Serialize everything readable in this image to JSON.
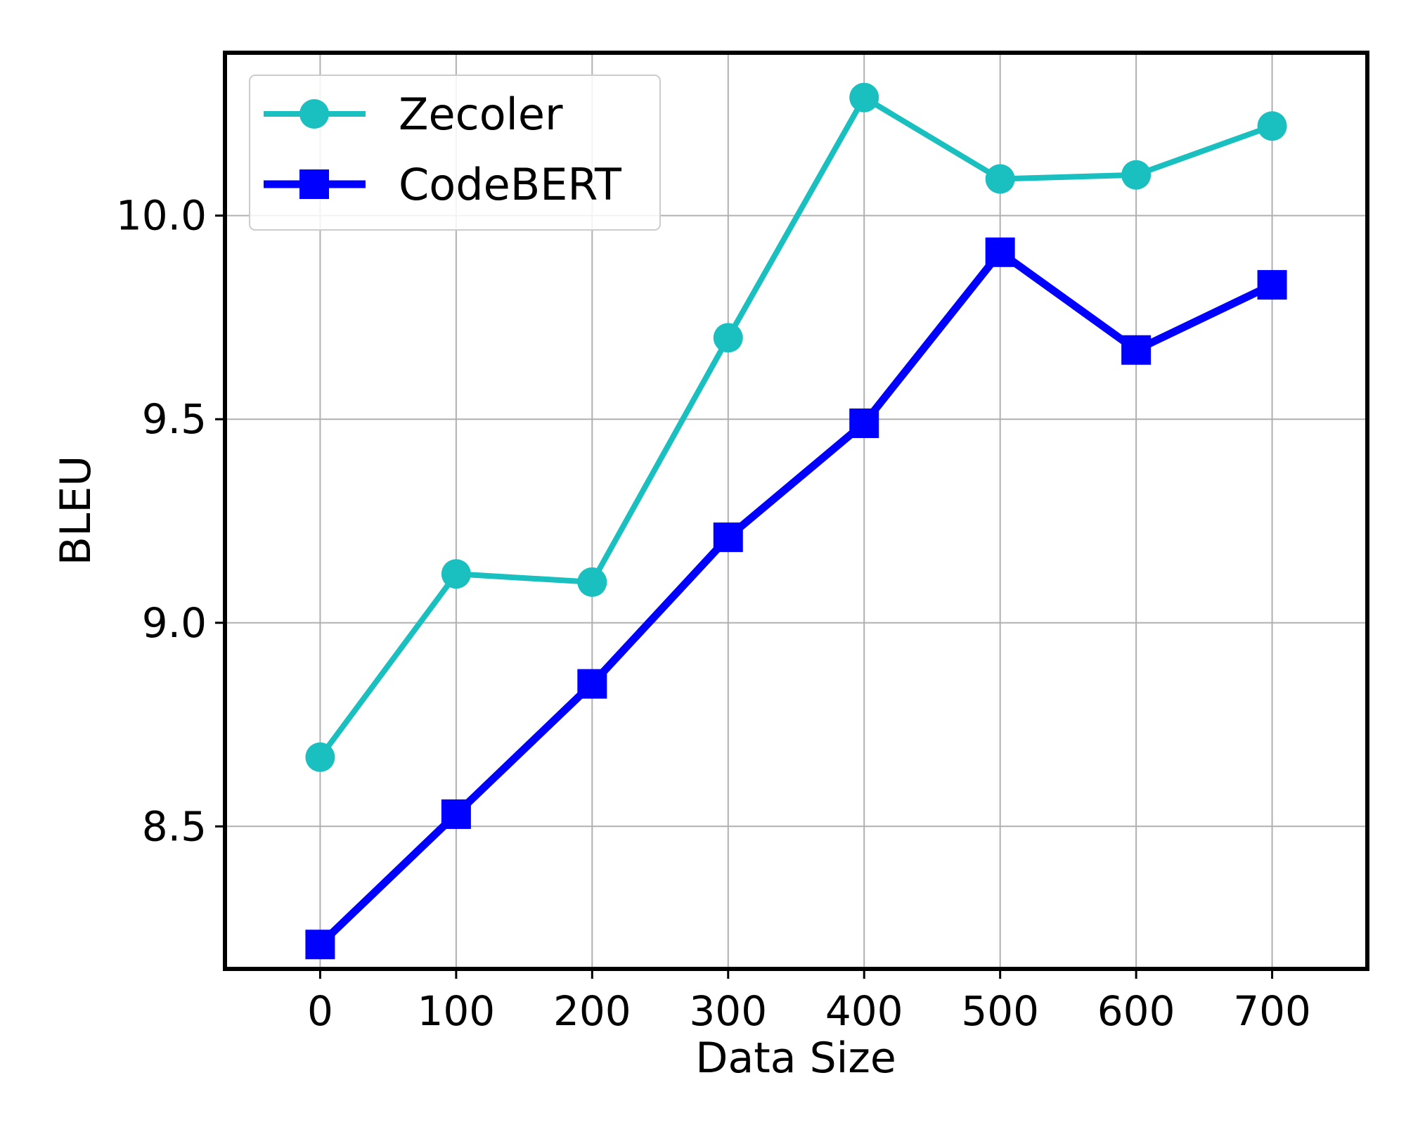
{
  "chart_data": {
    "type": "line",
    "xlabel": "Data Size",
    "ylabel": "BLEU",
    "xlim": [
      -70,
      770
    ],
    "ylim": [
      8.15,
      10.4
    ],
    "x": [
      0,
      100,
      200,
      300,
      400,
      500,
      600,
      700
    ],
    "xticks": [
      0,
      100,
      200,
      300,
      400,
      500,
      600,
      700
    ],
    "yticks": [
      8.5,
      9.0,
      9.5,
      10.0
    ],
    "ytick_labels": [
      "8.5",
      "9.0",
      "9.5",
      "10.0"
    ],
    "grid": true,
    "legend_position": "top-left",
    "series": [
      {
        "name": "Zecoler",
        "marker": "circle",
        "color": "#1abfbf",
        "values": [
          8.67,
          9.12,
          9.1,
          9.7,
          10.29,
          10.09,
          10.1,
          10.22
        ]
      },
      {
        "name": "CodeBERT",
        "marker": "square",
        "color": "#0000ff",
        "values": [
          8.21,
          8.53,
          8.85,
          9.21,
          9.49,
          9.91,
          9.67,
          9.83
        ]
      }
    ]
  }
}
